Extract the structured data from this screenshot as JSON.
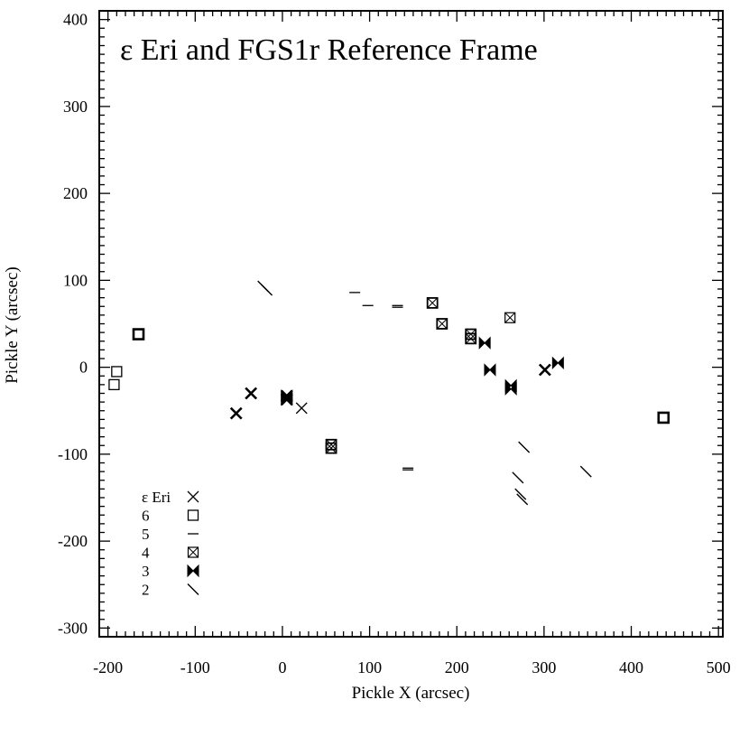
{
  "chart_data": {
    "type": "scatter",
    "title": "ε Eri and FGS1r Reference Frame",
    "xlabel": "Pickle X (arcsec)",
    "ylabel": "Pickle Y (arcsec)",
    "xlim": [
      -210,
      505
    ],
    "ylim": [
      -310,
      410
    ],
    "xticks": [
      -200,
      -100,
      0,
      100,
      200,
      300,
      400,
      500
    ],
    "yticks": [
      -300,
      -200,
      -100,
      0,
      100,
      200,
      300,
      400
    ],
    "xtick_labels": [
      "-200",
      "-100",
      "0",
      "100",
      "200",
      "300",
      "400",
      "500"
    ],
    "ytick_labels": [
      "-300",
      "-200",
      "-100",
      "0",
      "100",
      "200",
      "300",
      "400"
    ],
    "grid": false,
    "legend_position": "bottom-left",
    "series": [
      {
        "name": "ε Eri",
        "marker": "x",
        "points": [
          {
            "x": -53,
            "y": -53,
            "bold": true
          },
          {
            "x": -36,
            "y": -30,
            "bold": true
          },
          {
            "x": 5,
            "y": -33,
            "bold": true
          },
          {
            "x": 5,
            "y": -37,
            "bold": true
          },
          {
            "x": 22,
            "y": -47,
            "bold": false
          },
          {
            "x": 301,
            "y": -3,
            "bold": true
          }
        ]
      },
      {
        "name": "6",
        "marker": "square",
        "points": [
          {
            "x": -190,
            "y": -5,
            "bold": false
          },
          {
            "x": -193,
            "y": -20,
            "bold": false
          },
          {
            "x": -165,
            "y": 38,
            "bold": true
          },
          {
            "x": 437,
            "y": -58,
            "bold": true
          }
        ]
      },
      {
        "name": "5",
        "marker": "dash",
        "points": [
          {
            "x": 83,
            "y": 86
          },
          {
            "x": 98,
            "y": 71
          },
          {
            "x": 132,
            "y": 71
          },
          {
            "x": 132,
            "y": 69
          },
          {
            "x": 144,
            "y": -116
          },
          {
            "x": 144,
            "y": -118
          }
        ]
      },
      {
        "name": "4",
        "marker": "boxcross",
        "points": [
          {
            "x": 172,
            "y": 74,
            "bold": true
          },
          {
            "x": 183,
            "y": 50,
            "bold": true
          },
          {
            "x": 216,
            "y": 38,
            "bold": true
          },
          {
            "x": 216,
            "y": 33,
            "bold": true
          },
          {
            "x": 261,
            "y": 57,
            "bold": false
          },
          {
            "x": 56,
            "y": -89,
            "bold": true
          },
          {
            "x": 56,
            "y": -93,
            "bold": true
          }
        ]
      },
      {
        "name": "3",
        "marker": "bowtie",
        "points": [
          {
            "x": 232,
            "y": 28
          },
          {
            "x": 238,
            "y": -3
          },
          {
            "x": 262,
            "y": -21
          },
          {
            "x": 262,
            "y": -25
          },
          {
            "x": 316,
            "y": 5
          },
          {
            "x": 5,
            "y": -33
          },
          {
            "x": 5,
            "y": -37
          }
        ]
      },
      {
        "name": "2",
        "marker": "slash",
        "points": [
          {
            "x": -22,
            "y": 93
          },
          {
            "x": -18,
            "y": 89
          },
          {
            "x": 277,
            "y": -92
          },
          {
            "x": 270,
            "y": -127
          },
          {
            "x": 273,
            "y": -146
          },
          {
            "x": 275,
            "y": -152
          },
          {
            "x": 348,
            "y": -120
          }
        ]
      }
    ]
  }
}
